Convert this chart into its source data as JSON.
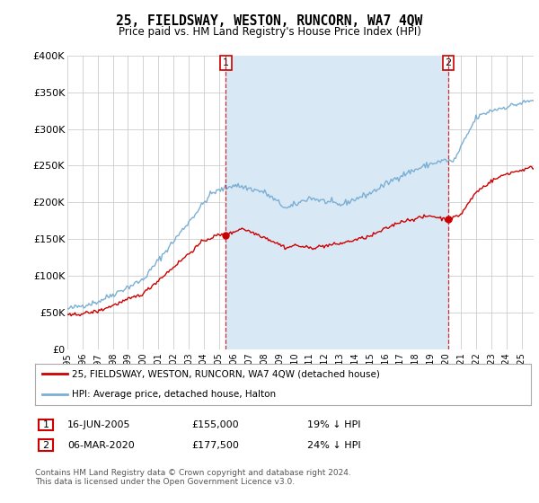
{
  "title": "25, FIELDSWAY, WESTON, RUNCORN, WA7 4QW",
  "subtitle": "Price paid vs. HM Land Registry's House Price Index (HPI)",
  "ylim": [
    0,
    400000
  ],
  "yticks": [
    0,
    50000,
    100000,
    150000,
    200000,
    250000,
    300000,
    350000,
    400000
  ],
  "ytick_labels": [
    "£0",
    "£50K",
    "£100K",
    "£150K",
    "£200K",
    "£250K",
    "£300K",
    "£350K",
    "£400K"
  ],
  "sale1_x": 2005.458,
  "sale1_price": 155000,
  "sale2_x": 2020.167,
  "sale2_price": 177500,
  "hpi_color": "#7bafd4",
  "price_color": "#cc0000",
  "shade_color": "#d8e8f5",
  "grid_color": "#cccccc",
  "legend_entry1": "25, FIELDSWAY, WESTON, RUNCORN, WA7 4QW (detached house)",
  "legend_entry2": "HPI: Average price, detached house, Halton",
  "table_row1": [
    "1",
    "16-JUN-2005",
    "£155,000",
    "19% ↓ HPI"
  ],
  "table_row2": [
    "2",
    "06-MAR-2020",
    "£177,500",
    "24% ↓ HPI"
  ],
  "footnote": "Contains HM Land Registry data © Crown copyright and database right 2024.\nThis data is licensed under the Open Government Licence v3.0.",
  "background_color": "#ffffff",
  "plot_bg_color": "#ffffff"
}
